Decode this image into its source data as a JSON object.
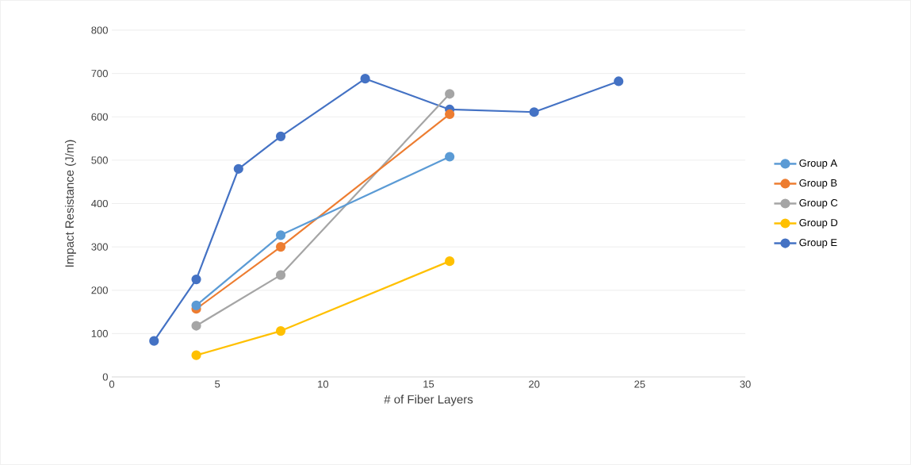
{
  "chart_data": {
    "type": "line",
    "xlabel": "# of Fiber Layers",
    "ylabel": "Impact Resistance (J/m)",
    "xlim": [
      0,
      30
    ],
    "xticks": [
      0,
      5,
      10,
      15,
      20,
      25,
      30
    ],
    "ylim": [
      0,
      800
    ],
    "yticks": [
      0,
      100,
      200,
      300,
      400,
      500,
      600,
      700,
      800
    ],
    "grid": "y",
    "legend": "right",
    "marker": "circle",
    "line_style": "solid",
    "series": [
      {
        "name": "Group A",
        "color": "#5b9bd5",
        "x": [
          4,
          8,
          16
        ],
        "values": [
          165,
          327,
          508
        ]
      },
      {
        "name": "Group B",
        "color": "#ed7d31",
        "x": [
          4,
          8,
          16
        ],
        "values": [
          157,
          300,
          606
        ]
      },
      {
        "name": "Group C",
        "color": "#a5a5a5",
        "x": [
          4,
          8,
          16
        ],
        "values": [
          118,
          235,
          653
        ]
      },
      {
        "name": "Group D",
        "color": "#ffc000",
        "x": [
          4,
          8,
          16
        ],
        "values": [
          50,
          106,
          267
        ]
      },
      {
        "name": "Group E",
        "color": "#4472c4",
        "x": [
          2,
          4,
          6,
          8,
          12,
          16,
          20,
          24
        ],
        "values": [
          83,
          225,
          480,
          555,
          688,
          617,
          611,
          682
        ]
      }
    ]
  }
}
